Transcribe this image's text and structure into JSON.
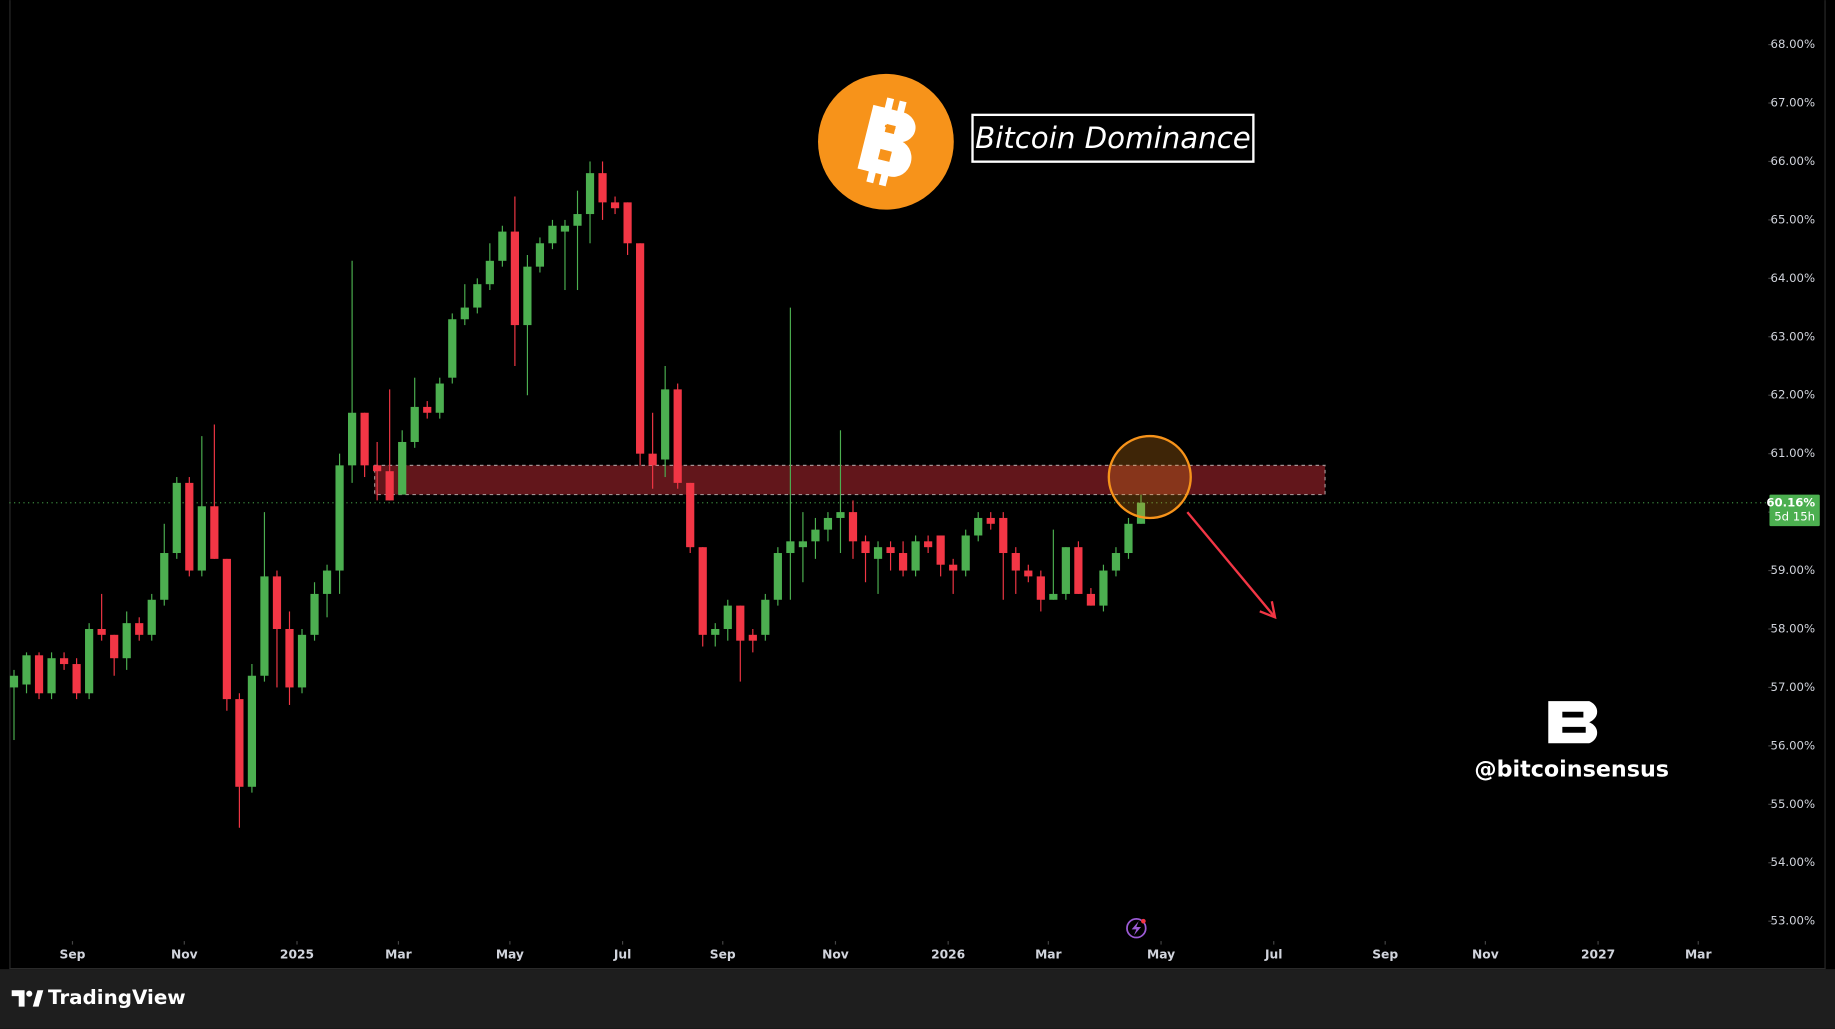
{
  "chart_data": {
    "type": "candlestick",
    "title": "Bitcoin Dominance",
    "watermark": "@bitcoinsensus",
    "up_color": "#4caf50",
    "down_color": "#f23645",
    "candles": {
      "open": [
        57.0,
        57.05,
        57.55,
        56.9,
        57.5,
        57.4,
        56.9,
        58.0,
        57.9,
        57.5,
        58.1,
        57.9,
        58.5,
        59.3,
        60.5,
        59.0,
        60.1,
        59.2,
        56.8,
        55.3,
        57.2,
        58.9,
        58.0,
        57.0,
        57.9,
        58.6,
        59.0,
        60.8,
        61.7,
        60.8,
        60.7,
        60.3,
        61.2,
        61.8,
        61.7,
        62.3,
        63.3,
        63.5,
        63.9,
        64.3,
        64.8,
        63.2,
        64.2,
        64.6,
        64.8,
        64.9,
        65.1,
        65.8,
        65.3,
        65.3,
        64.6,
        61.0,
        60.9,
        62.1,
        60.5,
        59.4,
        57.9,
        58.0,
        58.4,
        57.9,
        57.9,
        58.5,
        59.3,
        59.4,
        59.5,
        59.7,
        59.9,
        60.0,
        59.5,
        59.2,
        59.4,
        59.3,
        59.0,
        59.5,
        59.6,
        59.1,
        59.0,
        59.6,
        59.9,
        59.9,
        59.3,
        59.0,
        58.9,
        58.5,
        58.6,
        59.4,
        58.6,
        58.4,
        59.0,
        59.3,
        59.8
      ],
      "high": [
        57.3,
        57.6,
        57.6,
        57.6,
        57.6,
        57.5,
        58.1,
        58.6,
        57.9,
        58.3,
        58.2,
        58.6,
        59.8,
        60.6,
        60.6,
        61.3,
        61.5,
        59.2,
        56.9,
        57.4,
        60.0,
        59.0,
        58.3,
        58.0,
        58.8,
        59.1,
        61.0,
        64.3,
        61.7,
        61.2,
        62.1,
        61.4,
        62.3,
        61.9,
        62.3,
        63.4,
        63.9,
        64.0,
        64.6,
        64.9,
        65.4,
        64.4,
        64.7,
        65.0,
        65.0,
        65.5,
        66.0,
        66.0,
        65.4,
        65.3,
        64.6,
        61.7,
        62.5,
        62.2,
        60.5,
        59.4,
        58.1,
        58.5,
        58.4,
        58.0,
        58.6,
        59.4,
        63.5,
        60.0,
        59.9,
        60.0,
        61.4,
        60.2,
        59.6,
        59.5,
        59.5,
        59.5,
        59.6,
        59.6,
        59.6,
        59.2,
        59.7,
        60.0,
        60.0,
        60.0,
        59.4,
        59.1,
        59.0,
        59.7,
        59.4,
        59.5,
        58.7,
        59.1,
        59.4,
        59.9,
        60.3
      ],
      "low": [
        56.1,
        56.9,
        56.8,
        56.8,
        57.3,
        56.8,
        56.8,
        57.8,
        57.2,
        57.3,
        57.8,
        57.8,
        58.4,
        59.2,
        58.9,
        58.9,
        59.2,
        56.6,
        54.6,
        55.2,
        57.1,
        57.0,
        56.7,
        56.9,
        57.8,
        58.2,
        58.6,
        60.5,
        60.6,
        60.2,
        60.2,
        60.3,
        61.1,
        61.6,
        61.6,
        62.2,
        63.2,
        63.4,
        63.8,
        64.2,
        62.5,
        62.0,
        64.1,
        64.5,
        63.8,
        63.8,
        64.6,
        65.0,
        65.1,
        64.4,
        60.8,
        60.4,
        60.6,
        60.4,
        59.3,
        57.7,
        57.7,
        57.8,
        57.1,
        57.6,
        57.8,
        58.4,
        58.5,
        58.8,
        59.2,
        59.5,
        59.3,
        59.2,
        58.8,
        58.6,
        59.0,
        58.9,
        58.9,
        59.3,
        58.9,
        58.6,
        58.9,
        59.5,
        59.7,
        58.5,
        58.6,
        58.8,
        58.3,
        58.5,
        58.5,
        58.6,
        58.4,
        58.3,
        58.9,
        59.2,
        59.8
      ],
      "close": [
        57.2,
        57.55,
        56.9,
        57.5,
        57.4,
        56.9,
        58.0,
        57.9,
        57.5,
        58.1,
        57.9,
        58.5,
        59.3,
        60.5,
        59.0,
        60.1,
        59.2,
        56.8,
        55.3,
        57.2,
        58.9,
        58.0,
        57.0,
        57.9,
        58.6,
        59.0,
        60.8,
        61.7,
        60.8,
        60.7,
        60.2,
        61.2,
        61.8,
        61.7,
        62.2,
        63.3,
        63.5,
        63.9,
        64.3,
        64.8,
        63.2,
        64.2,
        64.6,
        64.9,
        64.9,
        65.1,
        65.8,
        65.3,
        65.2,
        64.6,
        61.0,
        60.8,
        62.1,
        60.5,
        59.4,
        57.9,
        58.0,
        58.4,
        57.8,
        57.8,
        58.5,
        59.3,
        59.5,
        59.5,
        59.7,
        59.9,
        60.0,
        59.5,
        59.3,
        59.4,
        59.3,
        59.0,
        59.5,
        59.4,
        59.1,
        59.0,
        59.6,
        59.9,
        59.8,
        59.3,
        59.0,
        58.9,
        58.5,
        58.6,
        59.4,
        58.6,
        58.4,
        59.0,
        59.3,
        59.8,
        60.16
      ]
    },
    "xlim": [
      -0.37,
      140
    ],
    "xticks": [
      {
        "value": 4.67,
        "label": "Sep"
      },
      {
        "value": 13.6,
        "label": "Nov"
      },
      {
        "value": 22.6,
        "label": "2025"
      },
      {
        "value": 30.7,
        "label": "Mar"
      },
      {
        "value": 39.6,
        "label": "May"
      },
      {
        "value": 48.6,
        "label": "Jul"
      },
      {
        "value": 56.6,
        "label": "Sep"
      },
      {
        "value": 65.6,
        "label": "Nov"
      },
      {
        "value": 74.6,
        "label": "2026"
      },
      {
        "value": 82.6,
        "label": "Mar"
      },
      {
        "value": 91.6,
        "label": "May"
      },
      {
        "value": 100.6,
        "label": "Jul"
      },
      {
        "value": 109.5,
        "label": "Sep"
      },
      {
        "value": 117.5,
        "label": "Nov"
      },
      {
        "value": 126.5,
        "label": "2027"
      },
      {
        "value": 134.5,
        "label": "Mar"
      }
    ],
    "ylim": [
      52.68,
      68.76
    ],
    "yticks": [
      {
        "value": 53,
        "label": "53.00%"
      },
      {
        "value": 54,
        "label": "54.00%"
      },
      {
        "value": 55,
        "label": "55.00%"
      },
      {
        "value": 56,
        "label": "56.00%"
      },
      {
        "value": 57,
        "label": "57.00%"
      },
      {
        "value": 58,
        "label": "58.00%"
      },
      {
        "value": 59,
        "label": "59.00%"
      },
      {
        "value": 60,
        "label": "60.00%"
      },
      {
        "value": 61,
        "label": "61.00%"
      },
      {
        "value": 62,
        "label": "62.00%"
      },
      {
        "value": 63,
        "label": "63.00%"
      },
      {
        "value": 64,
        "label": "64.00%"
      },
      {
        "value": 65,
        "label": "65.00%"
      },
      {
        "value": 66,
        "label": "66.00%"
      },
      {
        "value": 67,
        "label": "67.00%"
      },
      {
        "value": 68,
        "label": "68.00%"
      }
    ],
    "grid": false,
    "last_price": {
      "value": 60.16,
      "label": "60.16%",
      "countdown": "5d 15h"
    },
    "zone": {
      "x": [
        28.8,
        104.7
      ],
      "y": [
        60.3,
        60.8
      ],
      "color": "#7a1b22"
    },
    "circle": {
      "x": 90.7,
      "y": 60.6,
      "color": "#f7931a"
    },
    "arrow": {
      "x": [
        93.7,
        100.7
      ],
      "y": [
        60.0,
        58.2
      ],
      "color": "#f23645"
    }
  },
  "footer": {
    "brand": "TradingView"
  }
}
